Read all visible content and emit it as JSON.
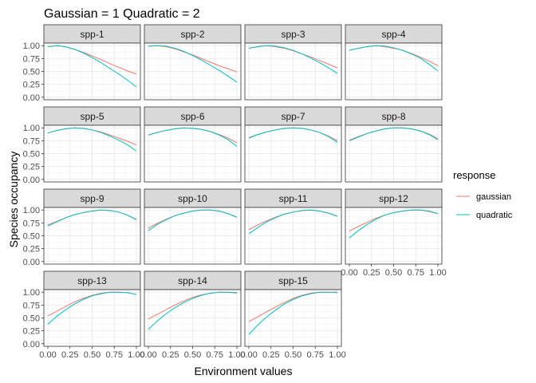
{
  "title": "Gaussian =  1 Quadratic =  2",
  "chart_data": {
    "type": "line",
    "facet_layout": "facet_wrap",
    "xlabel": "Environment values",
    "ylabel": "Species occupancy",
    "xlim": [
      0,
      1
    ],
    "ylim": [
      0,
      1
    ],
    "x_ticks": [
      0,
      0.25,
      0.5,
      0.75,
      1
    ],
    "y_ticks": [
      0,
      0.25,
      0.5,
      0.75,
      1
    ],
    "x_tick_labels": [
      "0.00",
      "0.25",
      "0.50",
      "0.75",
      "1.00"
    ],
    "y_tick_labels": [
      "0.00",
      "0.25",
      "0.50",
      "0.75",
      "1.00"
    ],
    "grid": true,
    "legend": {
      "title": "response",
      "position": "right",
      "entries": [
        {
          "label": "gaussian",
          "color": "#F8766D"
        },
        {
          "label": "quadratic",
          "color": "#00BFC4"
        }
      ]
    },
    "x": [
      0,
      0.1,
      0.2,
      0.3,
      0.4,
      0.5,
      0.6,
      0.7,
      0.8,
      0.9,
      1.0
    ],
    "panels": [
      {
        "label": "spp-1",
        "gaussian": [
          0.98,
          1.0,
          0.98,
          0.93,
          0.87,
          0.8,
          0.73,
          0.65,
          0.58,
          0.51,
          0.45
        ],
        "quadratic": [
          0.98,
          1.0,
          0.98,
          0.93,
          0.86,
          0.77,
          0.67,
          0.56,
          0.45,
          0.33,
          0.2
        ]
      },
      {
        "label": "spp-2",
        "gaussian": [
          0.99,
          1.0,
          0.98,
          0.94,
          0.88,
          0.82,
          0.75,
          0.68,
          0.61,
          0.55,
          0.49
        ],
        "quadratic": [
          0.99,
          1.0,
          0.99,
          0.95,
          0.89,
          0.81,
          0.72,
          0.62,
          0.52,
          0.41,
          0.29
        ]
      },
      {
        "label": "spp-3",
        "gaussian": [
          0.95,
          0.98,
          1.0,
          0.98,
          0.95,
          0.9,
          0.84,
          0.78,
          0.71,
          0.64,
          0.57
        ],
        "quadratic": [
          0.95,
          0.98,
          1.0,
          0.99,
          0.96,
          0.91,
          0.84,
          0.76,
          0.67,
          0.57,
          0.46
        ]
      },
      {
        "label": "spp-4",
        "gaussian": [
          0.91,
          0.95,
          0.98,
          1.0,
          0.98,
          0.95,
          0.91,
          0.85,
          0.78,
          0.7,
          0.61
        ],
        "quadratic": [
          0.91,
          0.95,
          0.98,
          1.0,
          0.99,
          0.96,
          0.91,
          0.84,
          0.76,
          0.64,
          0.51
        ]
      },
      {
        "label": "spp-5",
        "gaussian": [
          0.9,
          0.95,
          0.98,
          1.0,
          0.99,
          0.96,
          0.92,
          0.86,
          0.8,
          0.74,
          0.67
        ],
        "quadratic": [
          0.9,
          0.95,
          0.98,
          1.0,
          0.99,
          0.96,
          0.91,
          0.84,
          0.76,
          0.67,
          0.55
        ]
      },
      {
        "label": "spp-6",
        "gaussian": [
          0.86,
          0.91,
          0.95,
          0.98,
          1.0,
          0.99,
          0.97,
          0.93,
          0.87,
          0.8,
          0.71
        ],
        "quadratic": [
          0.86,
          0.91,
          0.95,
          0.98,
          1.0,
          0.99,
          0.97,
          0.93,
          0.86,
          0.77,
          0.64
        ]
      },
      {
        "label": "spp-7",
        "gaussian": [
          0.81,
          0.87,
          0.92,
          0.96,
          0.99,
          1.0,
          0.99,
          0.96,
          0.91,
          0.84,
          0.75
        ],
        "quadratic": [
          0.8,
          0.87,
          0.92,
          0.96,
          0.99,
          1.0,
          0.99,
          0.96,
          0.91,
          0.83,
          0.72
        ]
      },
      {
        "label": "spp-8",
        "gaussian": [
          0.76,
          0.83,
          0.89,
          0.94,
          0.98,
          1.0,
          1.0,
          0.98,
          0.94,
          0.88,
          0.79
        ],
        "quadratic": [
          0.75,
          0.82,
          0.89,
          0.94,
          0.98,
          1.0,
          1.0,
          0.98,
          0.94,
          0.87,
          0.77
        ]
      },
      {
        "label": "spp-9",
        "gaussian": [
          0.71,
          0.78,
          0.85,
          0.91,
          0.95,
          0.98,
          1.0,
          0.99,
          0.96,
          0.9,
          0.82
        ],
        "quadratic": [
          0.69,
          0.77,
          0.85,
          0.91,
          0.95,
          0.98,
          1.0,
          0.99,
          0.96,
          0.9,
          0.81
        ]
      },
      {
        "label": "spp-10",
        "gaussian": [
          0.65,
          0.74,
          0.82,
          0.89,
          0.94,
          0.98,
          1.0,
          1.0,
          0.98,
          0.93,
          0.86
        ],
        "quadratic": [
          0.6,
          0.72,
          0.81,
          0.89,
          0.94,
          0.98,
          1.0,
          1.0,
          0.98,
          0.93,
          0.86
        ]
      },
      {
        "label": "spp-11",
        "gaussian": [
          0.62,
          0.71,
          0.79,
          0.86,
          0.92,
          0.96,
          0.99,
          1.0,
          0.98,
          0.94,
          0.88
        ],
        "quadratic": [
          0.54,
          0.66,
          0.77,
          0.85,
          0.92,
          0.96,
          0.99,
          1.0,
          0.98,
          0.94,
          0.88
        ]
      },
      {
        "label": "spp-12",
        "gaussian": [
          0.59,
          0.68,
          0.76,
          0.84,
          0.9,
          0.95,
          0.98,
          1.0,
          1.0,
          0.97,
          0.93
        ],
        "quadratic": [
          0.46,
          0.6,
          0.72,
          0.82,
          0.9,
          0.95,
          0.98,
          1.0,
          1.0,
          0.98,
          0.93
        ]
      },
      {
        "label": "spp-13",
        "gaussian": [
          0.54,
          0.63,
          0.72,
          0.81,
          0.88,
          0.94,
          0.98,
          1.0,
          1.0,
          0.99,
          0.96
        ],
        "quadratic": [
          0.38,
          0.53,
          0.66,
          0.77,
          0.86,
          0.93,
          0.97,
          1.0,
          1.0,
          0.99,
          0.96
        ]
      },
      {
        "label": "spp-14",
        "gaussian": [
          0.48,
          0.57,
          0.66,
          0.75,
          0.83,
          0.9,
          0.95,
          0.98,
          1.0,
          1.0,
          0.98
        ],
        "quadratic": [
          0.28,
          0.44,
          0.58,
          0.7,
          0.8,
          0.88,
          0.94,
          0.98,
          1.0,
          1.0,
          0.99
        ]
      },
      {
        "label": "spp-15",
        "gaussian": [
          0.43,
          0.52,
          0.62,
          0.71,
          0.8,
          0.88,
          0.94,
          0.98,
          1.0,
          1.0,
          0.99
        ],
        "quadratic": [
          0.18,
          0.36,
          0.52,
          0.65,
          0.77,
          0.86,
          0.93,
          0.97,
          1.0,
          1.0,
          1.0
        ]
      }
    ]
  }
}
